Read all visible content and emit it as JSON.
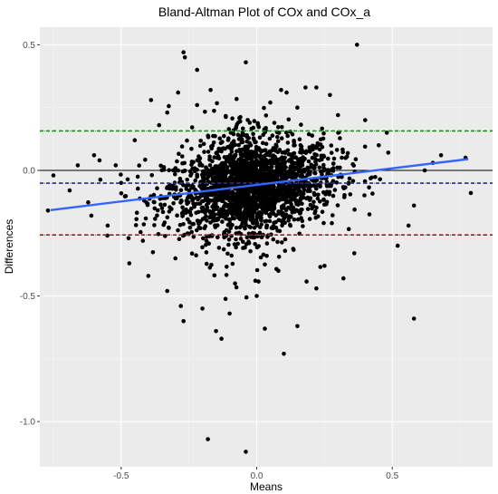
{
  "chart_data": {
    "type": "scatter",
    "title": "Bland-Altman Plot of COx and COx_a",
    "xlabel": "Means",
    "ylabel": "Differences",
    "xlim": [
      -0.8,
      0.87
    ],
    "ylim": [
      -1.18,
      0.57
    ],
    "x_ticks": [
      -0.5,
      0.0,
      0.5
    ],
    "x_tick_labels": [
      "-0.5",
      "0.0",
      "0.5"
    ],
    "y_ticks": [
      -1.0,
      -0.5,
      0.0,
      0.5
    ],
    "y_tick_labels": [
      "-1.0",
      "-0.5",
      "0.0",
      "0.5"
    ],
    "grid": true,
    "reference_lines": [
      {
        "y": 0.0,
        "color": "#000000",
        "style": "solid"
      },
      {
        "y": 0.157,
        "color": "#1a8f1a",
        "style": "dashed"
      },
      {
        "y": -0.051,
        "color": "#2b2b8f",
        "style": "dashed"
      },
      {
        "y": -0.257,
        "color": "#8b2a2a",
        "style": "dashed"
      }
    ],
    "regression_line": {
      "x": [
        -0.76,
        0.78
      ],
      "y": [
        -0.158,
        0.045
      ],
      "color": "#3366ff"
    },
    "points": [
      [
        -0.27,
        0.47
      ],
      [
        -0.265,
        0.45
      ],
      [
        -0.22,
        0.4
      ],
      [
        -0.04,
        0.43
      ],
      [
        0.37,
        0.5
      ],
      [
        -0.39,
        0.28
      ],
      [
        -0.29,
        0.31
      ],
      [
        -0.17,
        0.32
      ],
      [
        0.09,
        0.32
      ],
      [
        0.11,
        0.31
      ],
      [
        0.18,
        0.33
      ],
      [
        0.22,
        0.33
      ],
      [
        0.27,
        0.3
      ],
      [
        -0.33,
        0.23
      ],
      [
        -0.58,
        0.04
      ],
      [
        -0.66,
        0.02
      ],
      [
        -0.75,
        -0.02
      ],
      [
        -0.69,
        -0.08
      ],
      [
        -0.77,
        -0.16
      ],
      [
        0.68,
        0.06
      ],
      [
        0.77,
        0.05
      ],
      [
        0.79,
        -0.09
      ],
      [
        0.62,
        0.0
      ],
      [
        -0.5,
        -0.05
      ],
      [
        -0.47,
        -0.37
      ],
      [
        -0.4,
        -0.42
      ],
      [
        -0.33,
        -0.48
      ],
      [
        -0.28,
        -0.54
      ],
      [
        -0.27,
        -0.6
      ],
      [
        -0.15,
        -0.64
      ],
      [
        -0.13,
        -0.67
      ],
      [
        0.1,
        -0.73
      ],
      [
        -0.18,
        -1.07
      ],
      [
        -0.04,
        -1.12
      ],
      [
        0.58,
        -0.59
      ],
      [
        0.03,
        -0.63
      ],
      [
        -0.1,
        -0.57
      ],
      [
        0.22,
        -0.47
      ],
      [
        0.32,
        -0.43
      ],
      [
        0.56,
        -0.22
      ],
      [
        0.58,
        -0.14
      ],
      [
        0.48,
        0.15
      ],
      [
        -0.55,
        -0.22
      ],
      [
        -0.61,
        -0.18
      ],
      [
        0.15,
        -0.62
      ],
      [
        -0.2,
        -0.55
      ],
      [
        0.0,
        -0.5
      ],
      [
        -0.45,
        0.12
      ],
      [
        -0.36,
        0.18
      ],
      [
        0.05,
        0.27
      ],
      [
        0.3,
        0.22
      ],
      [
        0.4,
        0.2
      ],
      [
        -0.6,
        0.06
      ],
      [
        0.65,
        0.03
      ],
      [
        -0.52,
        0.02
      ],
      [
        -0.08,
        -0.45
      ],
      [
        0.08,
        -0.4
      ],
      [
        0.25,
        -0.38
      ],
      [
        -0.3,
        -0.35
      ],
      [
        -0.22,
        0.26
      ],
      [
        0.15,
        0.25
      ],
      [
        0.45,
        0.1
      ],
      [
        0.52,
        -0.3
      ],
      [
        -0.42,
        -0.28
      ],
      [
        0.36,
        -0.33
      ]
    ]
  }
}
